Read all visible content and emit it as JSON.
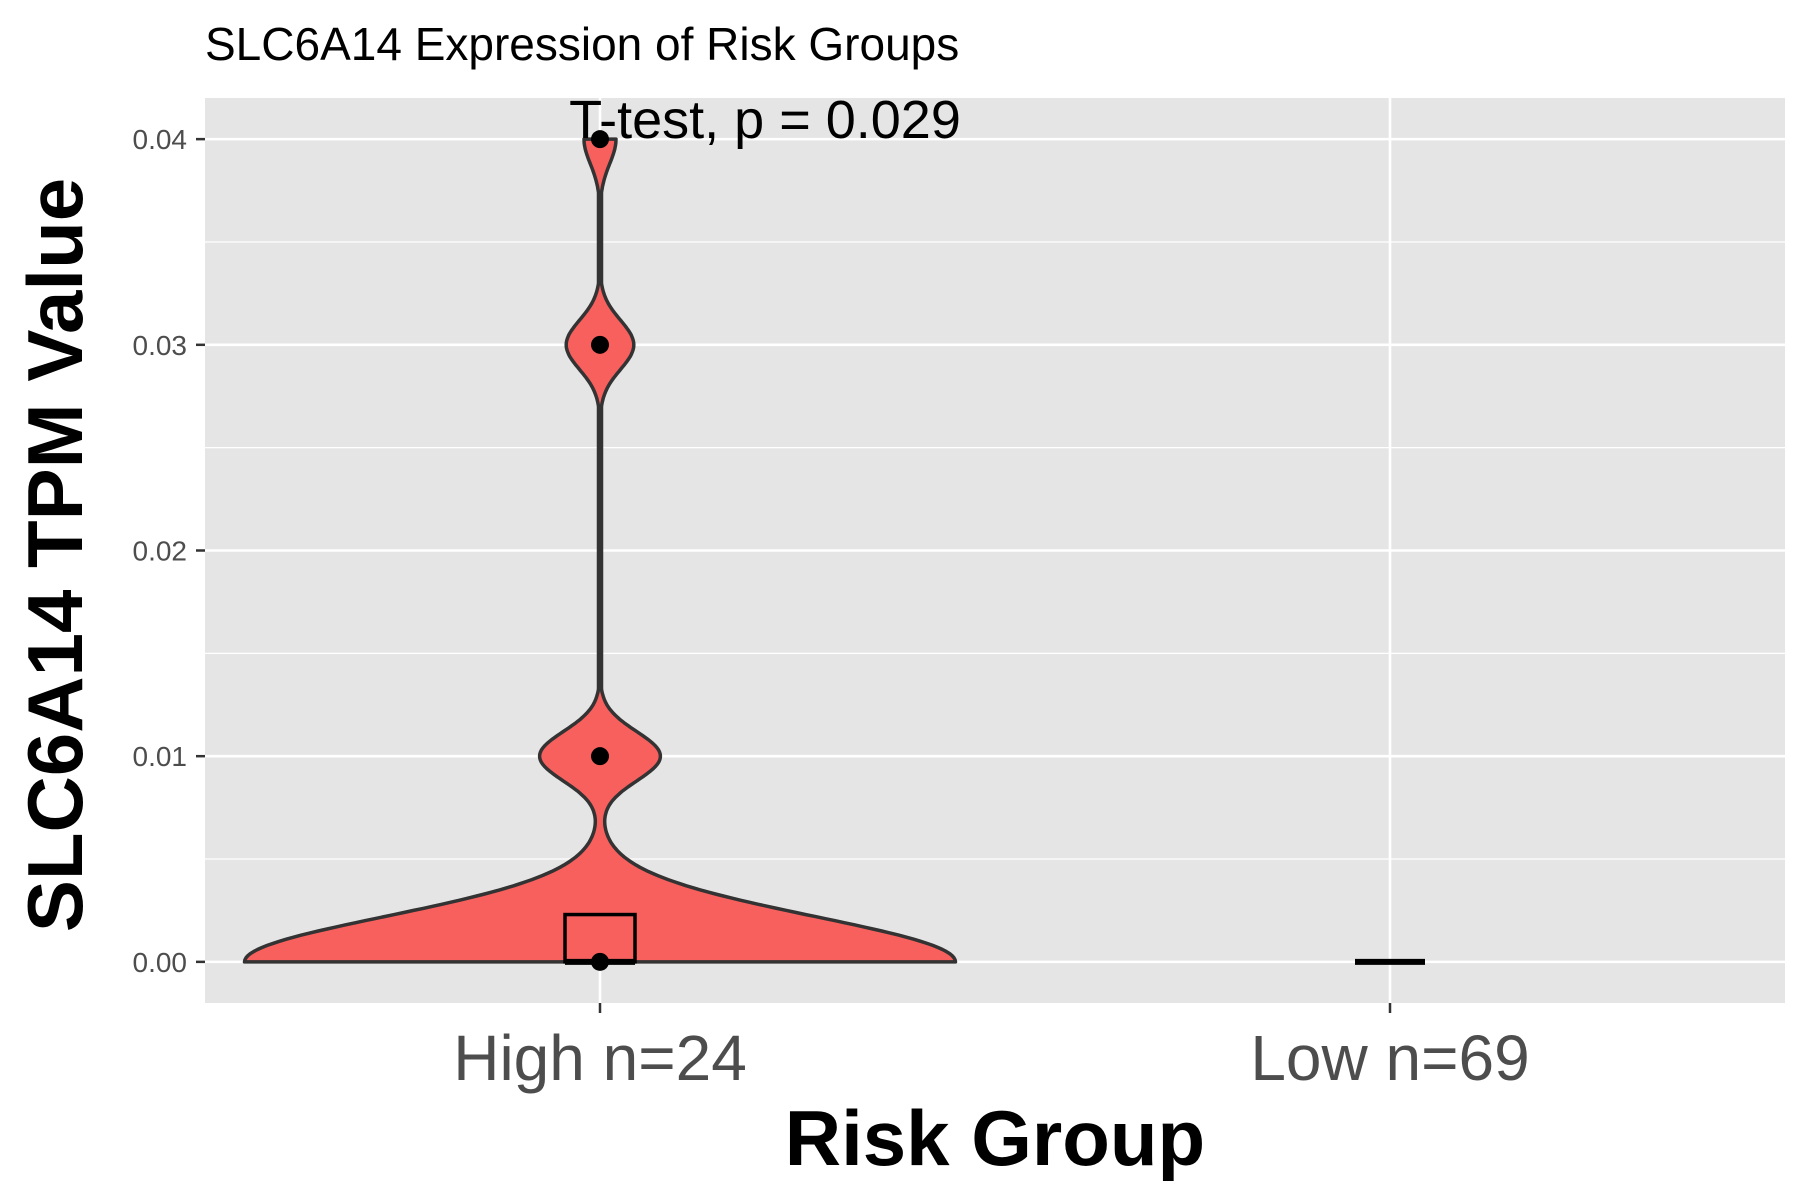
{
  "chart_data": {
    "type": "violin",
    "title": "SLC6A14 Expression of Risk Groups",
    "annotation": "T-test, p = 0.029",
    "xlabel": "Risk Group",
    "ylabel": "SLC6A14 TPM Value",
    "categories": [
      "High n=24",
      "Low n=69"
    ],
    "yticks": [
      "0.00",
      "0.01",
      "0.02",
      "0.03",
      "0.04"
    ],
    "ylim": [
      -0.002,
      0.042
    ],
    "grid": true,
    "colors": {
      "panel": "#e5e5e5",
      "grid": "#ffffff",
      "fill": "#f8605e",
      "outline": "#333333",
      "point": "#000000"
    },
    "series": [
      {
        "category": "High n=24",
        "points": [
          0.0,
          0.01,
          0.03,
          0.04
        ],
        "box": {
          "q1": 0.0,
          "median": 0.0,
          "q3": 0.0023
        },
        "density_modes": [
          {
            "y": 0.0,
            "w": 1.0
          },
          {
            "y": 0.01,
            "w": 0.17
          },
          {
            "y": 0.03,
            "w": 0.095
          },
          {
            "y": 0.04,
            "w": 0.045
          }
        ]
      },
      {
        "category": "Low n=69",
        "points": [
          0.0
        ],
        "box": {
          "q1": 0.0,
          "median": 0.0,
          "q3": 0.0
        },
        "density_modes": []
      }
    ]
  }
}
